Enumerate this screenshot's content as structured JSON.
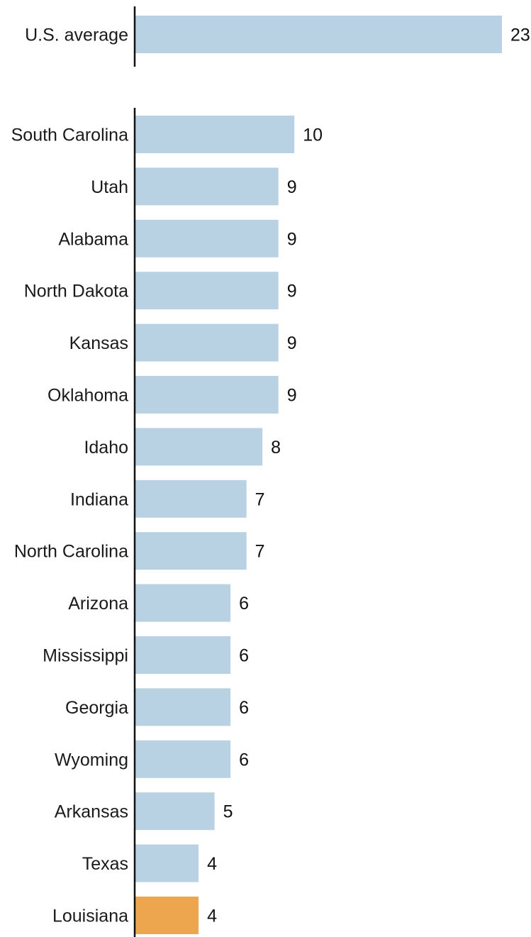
{
  "chart_data": {
    "type": "bar",
    "orientation": "horizontal",
    "title": "",
    "xlabel": "",
    "ylabel": "",
    "xlim": [
      0,
      23
    ],
    "grid": false,
    "legend": "none",
    "groups": [
      {
        "categories": [
          "U.S. average"
        ],
        "values": [
          23
        ]
      },
      {
        "categories": [
          "South Carolina",
          "Utah",
          "Alabama",
          "North Dakota",
          "Kansas",
          "Oklahoma",
          "Idaho",
          "Indiana",
          "North Carolina",
          "Arizona",
          "Mississippi",
          "Georgia",
          "Wyoming",
          "Arkansas",
          "Texas",
          "Louisiana"
        ],
        "values": [
          10,
          9,
          9,
          9,
          9,
          9,
          8,
          7,
          7,
          6,
          6,
          6,
          6,
          5,
          4,
          4
        ]
      }
    ],
    "highlight": "Louisiana",
    "colors": {
      "bar": "#b8d1e3",
      "highlight": "#eda54e",
      "axis": "#111111",
      "text": "#1a1a1a"
    }
  }
}
